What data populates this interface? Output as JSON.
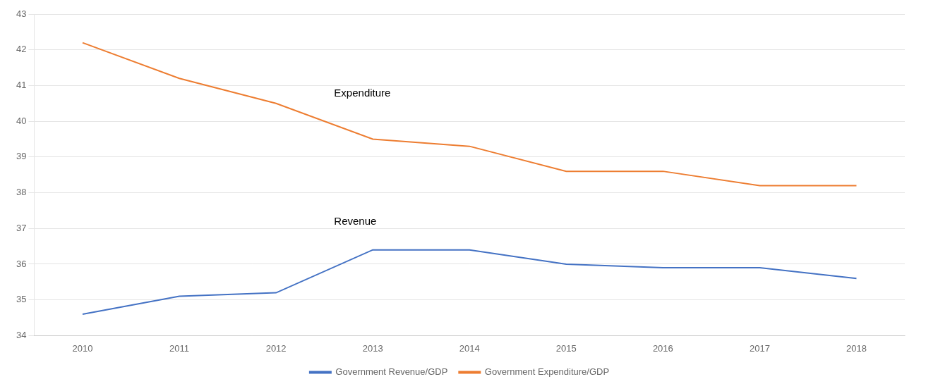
{
  "chart_data": {
    "type": "line",
    "x": [
      2010,
      2011,
      2012,
      2013,
      2014,
      2015,
      2016,
      2017,
      2018
    ],
    "series": [
      {
        "name": "Government Revenue/GDP",
        "color": "#4472C4",
        "values": [
          34.6,
          35.1,
          35.2,
          36.4,
          36.4,
          36.0,
          35.9,
          35.9,
          35.6
        ]
      },
      {
        "name": "Government Expenditure/GDP",
        "color": "#ED7D31",
        "values": [
          42.2,
          41.2,
          40.5,
          39.5,
          39.3,
          38.6,
          38.6,
          38.2,
          38.2
        ]
      }
    ],
    "annotations": [
      {
        "text": "Expenditure",
        "x": 2012.6,
        "y": 40.7
      },
      {
        "text": "Revenue",
        "x": 2012.6,
        "y": 37.1
      }
    ],
    "xlim": [
      2009.5,
      2018.5
    ],
    "xticks": [
      2010,
      2011,
      2012,
      2013,
      2014,
      2015,
      2016,
      2017,
      2018
    ],
    "ylim": [
      34,
      43
    ],
    "yticks": [
      34,
      35,
      36,
      37,
      38,
      39,
      40,
      41,
      42,
      43
    ],
    "grid": "y",
    "legend": "bottom"
  }
}
